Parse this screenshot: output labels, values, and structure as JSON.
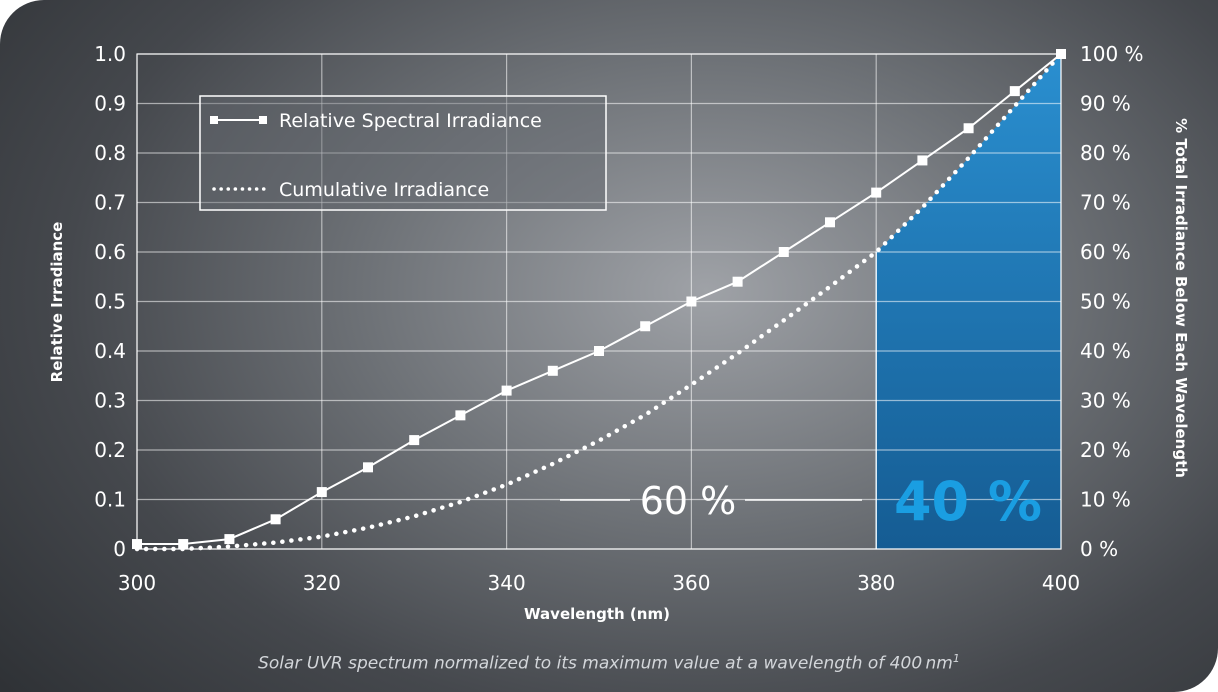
{
  "chart_data": {
    "type": "line",
    "xlabel": "Wavelength (nm)",
    "ylabel": "Relative Irradiance",
    "y2label": "% Total Irradiance Below Each Wavelength",
    "xlim": [
      300,
      400
    ],
    "ylim": [
      0,
      1.0
    ],
    "y2lim": [
      0,
      100
    ],
    "x_ticks": [
      "300",
      "320",
      "340",
      "360",
      "380",
      "400"
    ],
    "x_tick_values": [
      300,
      320,
      340,
      360,
      380,
      400
    ],
    "y_ticks": [
      "0",
      "0.1",
      "0.2",
      "0.3",
      "0.4",
      "0.5",
      "0.6",
      "0.7",
      "0.8",
      "0.9",
      "1.0"
    ],
    "y2_ticks": [
      "0 %",
      "10 %",
      "20 %",
      "30 %",
      "40 %",
      "50 %",
      "60 %",
      "70 %",
      "80 %",
      "90 %",
      "100 %"
    ],
    "grid": true,
    "legend_position": "top-left",
    "series": [
      {
        "name": "Relative Spectral Irradiance",
        "style": "solid-square-markers",
        "x": [
          300,
          305,
          310,
          315,
          320,
          325,
          330,
          335,
          340,
          345,
          350,
          355,
          360,
          365,
          370,
          375,
          380,
          385,
          390,
          395,
          400
        ],
        "y": [
          0.01,
          0.01,
          0.02,
          0.06,
          0.115,
          0.165,
          0.22,
          0.27,
          0.32,
          0.36,
          0.4,
          0.45,
          0.5,
          0.54,
          0.6,
          0.66,
          0.72,
          0.785,
          0.85,
          0.925,
          1.0
        ]
      },
      {
        "name": "Cumulative Irradiance",
        "style": "dotted",
        "x": [
          300,
          305,
          310,
          315,
          320,
          325,
          330,
          335,
          340,
          345,
          350,
          355,
          360,
          365,
          370,
          375,
          380,
          385,
          390,
          395,
          400
        ],
        "y": [
          0.0,
          0.0,
          0.5,
          1.3,
          2.5,
          4.3,
          6.6,
          9.5,
          13.0,
          17.2,
          21.9,
          27.1,
          33.2,
          39.5,
          46.2,
          53.0,
          60.0,
          69.0,
          79.0,
          89.5,
          100.0
        ]
      }
    ],
    "annotations": [
      {
        "text": "60 %",
        "x_range": [
          300,
          380
        ]
      },
      {
        "text": "40 %",
        "x_range": [
          380,
          400
        ],
        "color": "#1a9ee2"
      }
    ],
    "highlight_region": {
      "x_range": [
        380,
        400
      ],
      "color": "#1e6fa6"
    },
    "caption": "Solar UVR spectrum normalized to its maximum value at a wavelength of 400 nm",
    "caption_sup": "1"
  }
}
